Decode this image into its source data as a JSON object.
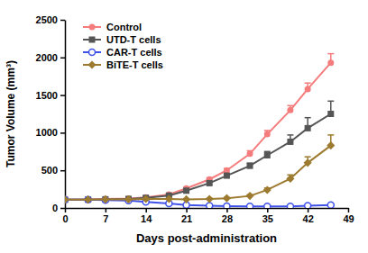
{
  "chart_data": {
    "type": "line",
    "x_label": "Days post-administration",
    "y_label": "Tumor Volume (mm³)",
    "x": [
      0,
      4,
      7,
      11,
      14,
      18,
      21,
      25,
      28,
      32,
      35,
      39,
      42,
      46
    ],
    "xlim": [
      0,
      49
    ],
    "xticks": [
      0,
      7,
      14,
      21,
      28,
      35,
      42,
      49
    ],
    "ylim": [
      0,
      2500
    ],
    "yticks": [
      0,
      500,
      1000,
      1500,
      2000,
      2500
    ],
    "legend": "upper-left",
    "series": [
      {
        "name": "Control",
        "color": "#f47c7c",
        "marker": "circle",
        "values": [
          110,
          115,
          120,
          125,
          140,
          180,
          260,
          380,
          500,
          720,
          980,
          1300,
          1580,
          1930
        ],
        "errors": [
          5,
          5,
          6,
          8,
          10,
          12,
          15,
          20,
          25,
          40,
          50,
          60,
          80,
          120
        ]
      },
      {
        "name": "UTD-T cells",
        "color": "#555555",
        "marker": "square",
        "values": [
          110,
          112,
          115,
          120,
          135,
          165,
          230,
          330,
          430,
          560,
          700,
          880,
          1060,
          1250
        ],
        "errors": [
          5,
          5,
          6,
          7,
          9,
          12,
          15,
          20,
          25,
          35,
          50,
          90,
          140,
          170
        ]
      },
      {
        "name": "CAR-T cells",
        "color": "#3f51e8",
        "marker": "circle-open",
        "values": [
          110,
          110,
          105,
          100,
          80,
          60,
          40,
          30,
          25,
          20,
          20,
          20,
          30,
          40
        ],
        "errors": [
          5,
          5,
          5,
          5,
          6,
          6,
          5,
          5,
          4,
          4,
          4,
          5,
          6,
          8
        ]
      },
      {
        "name": "BiTE-T cells",
        "color": "#9c7a2f",
        "marker": "diamond",
        "values": [
          110,
          112,
          115,
          115,
          120,
          120,
          115,
          120,
          130,
          160,
          240,
          390,
          600,
          830
        ],
        "errors": [
          5,
          5,
          5,
          5,
          6,
          6,
          6,
          8,
          10,
          15,
          25,
          50,
          80,
          140
        ]
      }
    ]
  }
}
